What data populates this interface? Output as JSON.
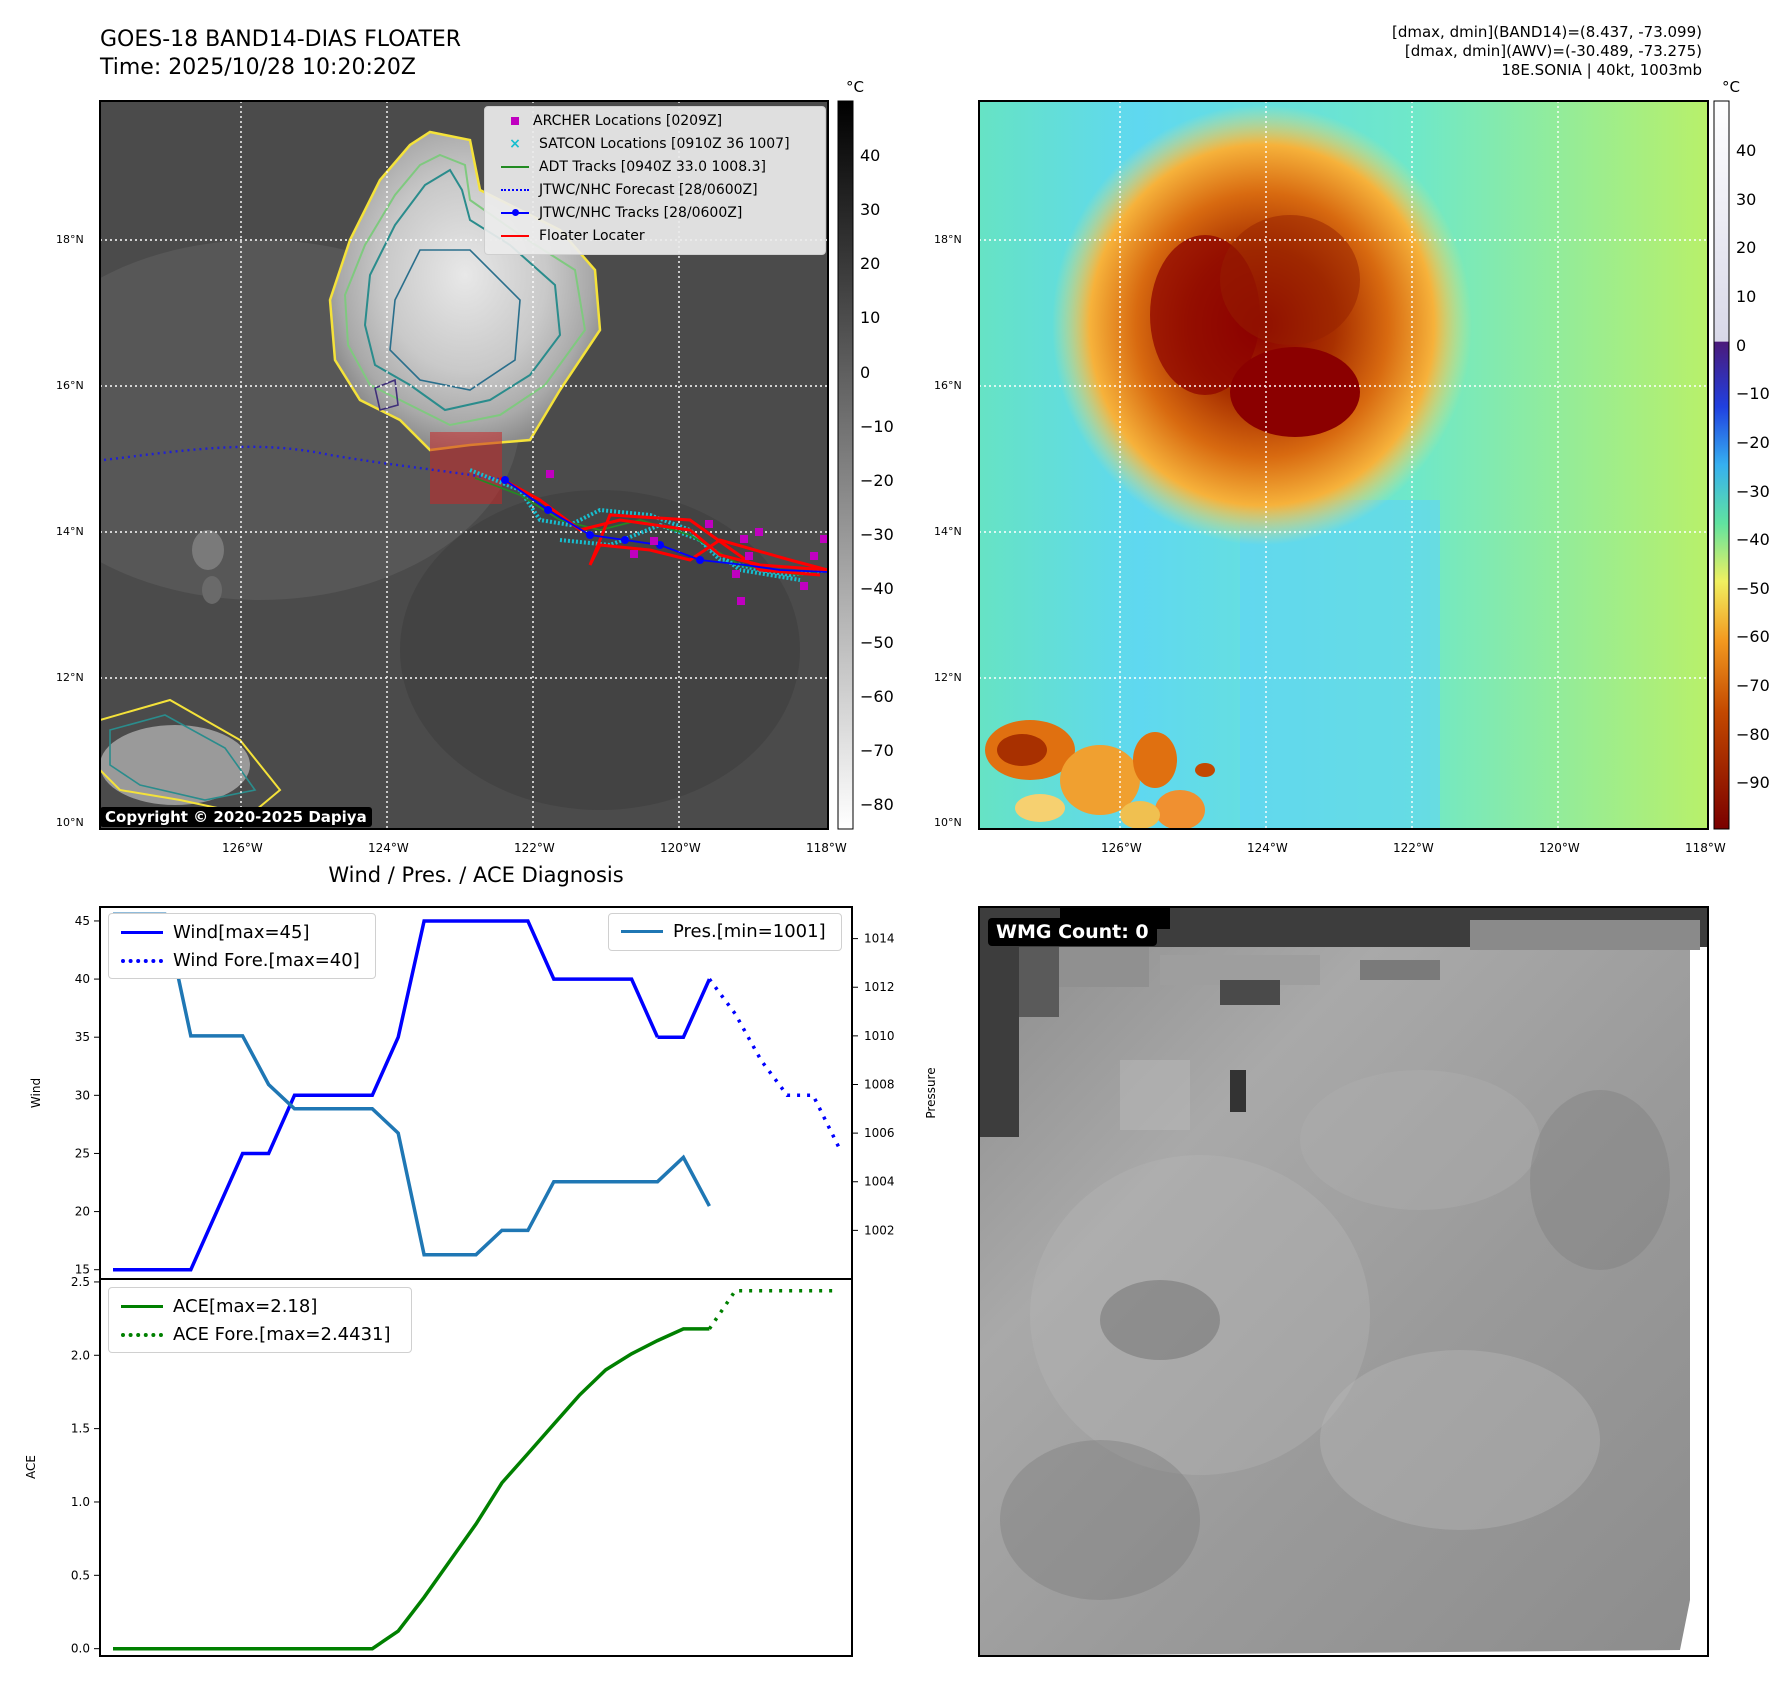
{
  "header": {
    "title_line1": "GOES-18 BAND14-DIAS FLOATER",
    "title_line2": "Time: 2025/10/28 10:20:20Z",
    "stats_line1": "[dmax, dmin](BAND14)=(8.437, -73.099)",
    "stats_line2": "[dmax, dmin](AWV)=(-30.489, -73.275)",
    "stats_line3": "18E.SONIA | 40kt, 1003mb"
  },
  "colors": {
    "wind": "#0000ff",
    "pressure": "#1f77b4",
    "ace": "#008000",
    "archer": "#c000c0",
    "satcon": "#17becf",
    "adt": "#228b22",
    "floater": "#ff0000"
  },
  "map": {
    "lat_labels": [
      "18°N",
      "16°N",
      "14°N",
      "12°N",
      "10°N"
    ],
    "lon_labels": [
      "126°W",
      "124°W",
      "122°W",
      "120°W",
      "118°W"
    ],
    "copyright": "Copyright © 2020-2025 Dapiya",
    "colorbar_unit": "°C",
    "ir_colorbar_ticks": [
      "40",
      "30",
      "20",
      "10",
      "0",
      "−10",
      "−20",
      "−30",
      "−40",
      "−50",
      "−60",
      "−70",
      "−80"
    ],
    "color_colorbar_ticks": [
      "40",
      "30",
      "20",
      "10",
      "0",
      "−10",
      "−20",
      "−30",
      "−40",
      "−50",
      "−60",
      "−70",
      "−80",
      "−90"
    ],
    "legend": [
      {
        "label": "ARCHER Locations [0209Z]",
        "icon": "square-marker"
      },
      {
        "label": "SATCON Locations [0910Z 36 1007]",
        "icon": "x-marker"
      },
      {
        "label": "ADT Tracks [0940Z 33.0 1008.3]",
        "icon": "solid-line"
      },
      {
        "label": "JTWC/NHC Forecast [28/0600Z]",
        "icon": "dotted-line"
      },
      {
        "label": "JTWC/NHC Tracks [28/0600Z]",
        "icon": "dot-line"
      },
      {
        "label": "Floater Locater",
        "icon": "solid-line"
      }
    ]
  },
  "diagnosis": {
    "title": "Wind / Pres. / ACE Diagnosis",
    "wind_ylabel": "Wind",
    "pres_ylabel": "Pressure",
    "ace_ylabel": "ACE",
    "legend_wind": "Wind[max=45]",
    "legend_wind_fore": "Wind Fore.[max=40]",
    "legend_pres": "Pres.[min=1001]",
    "legend_ace": "ACE[max=2.18]",
    "legend_ace_fore": "ACE Fore.[max=2.4431]"
  },
  "chart_data": [
    {
      "type": "line",
      "title": "Wind / Pres. / ACE Diagnosis",
      "ylabel": "Wind",
      "ylim": [
        14.2,
        46.2
      ],
      "yticks": [
        15,
        20,
        25,
        30,
        35,
        40,
        45
      ],
      "xlim": [
        -0.5,
        28.5
      ],
      "series": [
        {
          "name": "Wind",
          "x": [
            0,
            1,
            2,
            3,
            4,
            5,
            6,
            7,
            8,
            9,
            10,
            11,
            12,
            13,
            14,
            15,
            16,
            17,
            18,
            19,
            20,
            21
          ],
          "values": [
            15,
            15,
            15,
            15,
            20,
            25,
            25,
            30,
            30,
            30,
            30,
            35,
            45,
            45,
            45,
            45,
            45,
            40,
            40,
            40,
            40,
            35
          ]
        },
        {
          "name": "Wind (tail)",
          "x": [
            21,
            22,
            23
          ],
          "values": [
            35,
            35,
            40
          ]
        },
        {
          "name": "Wind Fore.",
          "x": [
            23,
            24,
            25,
            26,
            27,
            28
          ],
          "values": [
            40,
            37,
            33,
            30,
            30,
            25.5
          ]
        }
      ]
    },
    {
      "type": "line",
      "ylabel": "Pressure",
      "ylim": [
        1000,
        1015.3
      ],
      "yticks": [
        1002,
        1004,
        1006,
        1008,
        1010,
        1012,
        1014
      ],
      "xlim": [
        -0.5,
        28.5
      ],
      "series": [
        {
          "name": "Pres.",
          "x": [
            0,
            1,
            2,
            3,
            4,
            5,
            6,
            7,
            8,
            9,
            10,
            11,
            12,
            13,
            14,
            15,
            16,
            17,
            18,
            19,
            20,
            21,
            22,
            23
          ],
          "values": [
            1015,
            1015,
            1015,
            1010,
            1010,
            1010,
            1008,
            1007,
            1007,
            1007,
            1007,
            1006,
            1001,
            1001,
            1001,
            1002,
            1002,
            1004,
            1004,
            1004,
            1004,
            1004,
            1005,
            1003
          ]
        }
      ]
    },
    {
      "type": "line",
      "ylabel": "ACE",
      "ylim": [
        -0.05,
        2.52
      ],
      "yticks": [
        0.0,
        0.5,
        1.0,
        1.5,
        2.0,
        2.5
      ],
      "xlim": [
        -0.5,
        28.5
      ],
      "series": [
        {
          "name": "ACE",
          "x": [
            0,
            10,
            11,
            12,
            13,
            14,
            15,
            16,
            17,
            18,
            19,
            20,
            21,
            22,
            23
          ],
          "values": [
            0,
            0,
            0.12,
            0.35,
            0.6,
            0.85,
            1.13,
            1.33,
            1.53,
            1.73,
            1.9,
            2.01,
            2.1,
            2.18,
            2.18
          ]
        },
        {
          "name": "ACE Fore.",
          "x": [
            23,
            24,
            25,
            26,
            27,
            28
          ],
          "values": [
            2.18,
            2.44,
            2.44,
            2.44,
            2.44,
            2.44
          ]
        }
      ]
    }
  ],
  "wmg": {
    "label": "WMG Count: 0"
  }
}
